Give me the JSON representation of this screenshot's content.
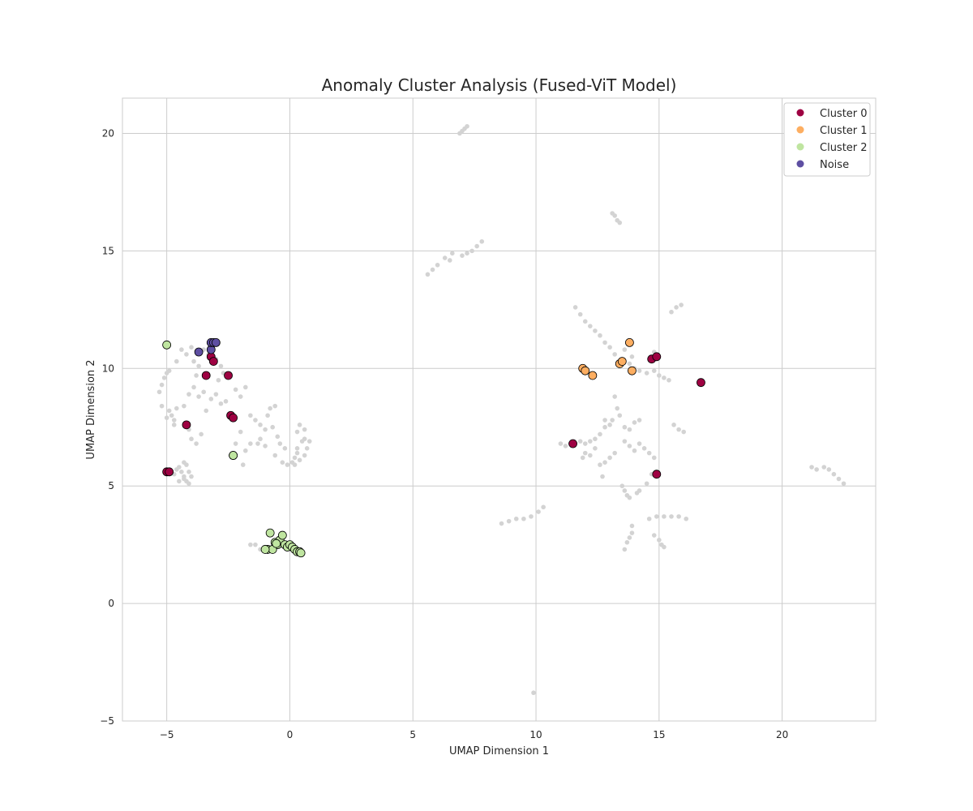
{
  "chart_data": {
    "type": "scatter",
    "title": "Anomaly Cluster Analysis (Fused-ViT Model)",
    "xlabel": "UMAP Dimension 1",
    "ylabel": "UMAP Dimension 2",
    "xlim": [
      -6.8,
      23.8
    ],
    "ylim": [
      -5.0,
      21.5
    ],
    "xticks": [
      -5,
      0,
      5,
      10,
      15,
      20
    ],
    "yticks": [
      -5,
      0,
      5,
      10,
      15,
      20
    ],
    "xtick_labels": [
      "−5",
      "0",
      "5",
      "10",
      "15",
      "20"
    ],
    "ytick_labels": [
      "−5",
      "0",
      "5",
      "10",
      "15",
      "20"
    ],
    "grid": true,
    "legend_position": "top-right",
    "background_color": "#d3d3d3",
    "background": [
      [
        -5.3,
        9.0
      ],
      [
        -5.2,
        9.3
      ],
      [
        -5.1,
        9.6
      ],
      [
        -5.0,
        9.8
      ],
      [
        -4.9,
        8.2
      ],
      [
        -4.8,
        8.0
      ],
      [
        -4.7,
        7.8
      ],
      [
        -4.6,
        8.3
      ],
      [
        -5.2,
        8.4
      ],
      [
        -5.0,
        7.9
      ],
      [
        -4.7,
        7.6
      ],
      [
        -4.9,
        9.9
      ],
      [
        -4.6,
        10.3
      ],
      [
        -4.4,
        10.8
      ],
      [
        -4.2,
        10.6
      ],
      [
        -4.0,
        10.9
      ],
      [
        -3.9,
        10.3
      ],
      [
        -3.7,
        10.1
      ],
      [
        -3.5,
        10.8
      ],
      [
        -3.3,
        10.6
      ],
      [
        -3.0,
        10.4
      ],
      [
        -2.8,
        10.1
      ],
      [
        -2.7,
        9.8
      ],
      [
        -2.9,
        9.5
      ],
      [
        -3.8,
        9.7
      ],
      [
        -3.9,
        9.2
      ],
      [
        -4.1,
        8.9
      ],
      [
        -4.3,
        8.4
      ],
      [
        -4.0,
        7.0
      ],
      [
        -3.8,
        6.8
      ],
      [
        -3.6,
        7.2
      ],
      [
        -4.1,
        7.4
      ],
      [
        -3.7,
        8.8
      ],
      [
        -3.5,
        9.0
      ],
      [
        -3.2,
        8.7
      ],
      [
        -3.0,
        8.9
      ],
      [
        -2.8,
        8.5
      ],
      [
        -2.6,
        8.6
      ],
      [
        -3.4,
        8.2
      ],
      [
        -2.2,
        9.1
      ],
      [
        -2.0,
        8.8
      ],
      [
        -1.8,
        9.2
      ],
      [
        -4.9,
        5.6
      ],
      [
        -4.7,
        5.5
      ],
      [
        -4.5,
        5.8
      ],
      [
        -4.3,
        5.4
      ],
      [
        -4.2,
        5.2
      ],
      [
        -4.1,
        5.1
      ],
      [
        -4.3,
        6.0
      ],
      [
        -4.5,
        5.2
      ],
      [
        -4.0,
        5.4
      ],
      [
        -4.4,
        5.6
      ],
      [
        -4.2,
        5.9
      ],
      [
        -4.6,
        5.7
      ],
      [
        -4.3,
        5.3
      ],
      [
        -4.1,
        5.6
      ],
      [
        -1.6,
        8.0
      ],
      [
        -1.4,
        7.8
      ],
      [
        -1.2,
        7.6
      ],
      [
        -1.0,
        7.4
      ],
      [
        -0.9,
        8.0
      ],
      [
        -0.8,
        8.3
      ],
      [
        -0.6,
        8.4
      ],
      [
        -0.7,
        7.5
      ],
      [
        -0.5,
        7.1
      ],
      [
        -1.2,
        7.0
      ],
      [
        -1.0,
        6.7
      ],
      [
        -1.3,
        6.8
      ],
      [
        -0.6,
        6.3
      ],
      [
        -0.3,
        6.0
      ],
      [
        -0.1,
        5.9
      ],
      [
        0.1,
        6.0
      ],
      [
        0.2,
        6.2
      ],
      [
        0.3,
        6.4
      ],
      [
        0.3,
        6.6
      ],
      [
        0.5,
        6.9
      ],
      [
        0.6,
        7.0
      ],
      [
        0.8,
        6.9
      ],
      [
        0.7,
        6.6
      ],
      [
        0.6,
        6.3
      ],
      [
        0.4,
        6.1
      ],
      [
        0.2,
        5.9
      ],
      [
        0.3,
        7.3
      ],
      [
        0.4,
        7.6
      ],
      [
        0.6,
        7.4
      ],
      [
        -0.2,
        6.6
      ],
      [
        -0.4,
        6.8
      ],
      [
        -2.0,
        7.3
      ],
      [
        -2.2,
        6.8
      ],
      [
        -1.8,
        6.5
      ],
      [
        -1.6,
        6.8
      ],
      [
        -1.9,
        5.9
      ],
      [
        -1.0,
        2.4
      ],
      [
        -1.2,
        2.3
      ],
      [
        -1.4,
        2.5
      ],
      [
        -1.6,
        2.5
      ],
      [
        6.9,
        20.0
      ],
      [
        7.0,
        20.1
      ],
      [
        7.1,
        20.2
      ],
      [
        7.2,
        20.3
      ],
      [
        5.6,
        14.0
      ],
      [
        5.8,
        14.2
      ],
      [
        6.0,
        14.4
      ],
      [
        6.3,
        14.7
      ],
      [
        6.6,
        14.9
      ],
      [
        7.0,
        14.8
      ],
      [
        7.2,
        14.9
      ],
      [
        7.4,
        15.0
      ],
      [
        7.6,
        15.2
      ],
      [
        7.8,
        15.4
      ],
      [
        6.5,
        14.6
      ],
      [
        13.1,
        16.6
      ],
      [
        13.2,
        16.5
      ],
      [
        13.3,
        16.3
      ],
      [
        13.4,
        16.2
      ],
      [
        11.6,
        12.6
      ],
      [
        11.8,
        12.3
      ],
      [
        12.0,
        12.0
      ],
      [
        12.2,
        11.8
      ],
      [
        12.4,
        11.6
      ],
      [
        12.6,
        11.4
      ],
      [
        12.8,
        11.1
      ],
      [
        13.0,
        10.9
      ],
      [
        13.2,
        10.6
      ],
      [
        13.5,
        10.4
      ],
      [
        13.8,
        10.2
      ],
      [
        14.0,
        10.0
      ],
      [
        14.2,
        9.9
      ],
      [
        14.5,
        9.8
      ],
      [
        14.8,
        9.9
      ],
      [
        15.0,
        9.7
      ],
      [
        15.2,
        9.6
      ],
      [
        15.4,
        9.5
      ],
      [
        15.5,
        12.4
      ],
      [
        15.7,
        12.6
      ],
      [
        15.9,
        12.7
      ],
      [
        14.8,
        10.7
      ],
      [
        13.6,
        10.8
      ],
      [
        13.9,
        10.5
      ],
      [
        13.2,
        8.8
      ],
      [
        13.3,
        8.3
      ],
      [
        13.4,
        8.0
      ],
      [
        13.1,
        7.8
      ],
      [
        12.8,
        7.5
      ],
      [
        12.6,
        7.2
      ],
      [
        12.4,
        7.0
      ],
      [
        12.2,
        6.9
      ],
      [
        12.0,
        6.8
      ],
      [
        11.8,
        6.9
      ],
      [
        11.4,
        6.8
      ],
      [
        11.2,
        6.7
      ],
      [
        11.0,
        6.8
      ],
      [
        12.8,
        7.8
      ],
      [
        13.0,
        7.6
      ],
      [
        13.6,
        7.5
      ],
      [
        13.8,
        7.4
      ],
      [
        14.0,
        7.7
      ],
      [
        14.2,
        7.8
      ],
      [
        13.6,
        6.9
      ],
      [
        13.8,
        6.7
      ],
      [
        14.0,
        6.5
      ],
      [
        14.2,
        6.8
      ],
      [
        14.4,
        6.6
      ],
      [
        14.6,
        6.4
      ],
      [
        14.8,
        6.2
      ],
      [
        13.2,
        6.4
      ],
      [
        13.0,
        6.2
      ],
      [
        12.8,
        6.0
      ],
      [
        12.6,
        5.9
      ],
      [
        12.4,
        6.6
      ],
      [
        12.2,
        6.3
      ],
      [
        12.0,
        6.4
      ],
      [
        11.9,
        6.2
      ],
      [
        12.7,
        5.4
      ],
      [
        13.5,
        5.0
      ],
      [
        13.6,
        4.8
      ],
      [
        13.7,
        4.6
      ],
      [
        13.8,
        4.5
      ],
      [
        14.1,
        4.7
      ],
      [
        14.2,
        4.8
      ],
      [
        14.5,
        5.1
      ],
      [
        14.7,
        5.5
      ],
      [
        13.9,
        3.0
      ],
      [
        13.8,
        2.8
      ],
      [
        13.7,
        2.6
      ],
      [
        13.6,
        2.3
      ],
      [
        13.9,
        3.3
      ],
      [
        14.6,
        3.6
      ],
      [
        14.9,
        3.7
      ],
      [
        15.2,
        3.7
      ],
      [
        15.5,
        3.7
      ],
      [
        15.8,
        3.7
      ],
      [
        16.1,
        3.6
      ],
      [
        14.8,
        2.9
      ],
      [
        15.0,
        2.7
      ],
      [
        15.1,
        2.5
      ],
      [
        15.2,
        2.4
      ],
      [
        15.8,
        7.4
      ],
      [
        16.0,
        7.3
      ],
      [
        15.6,
        7.6
      ],
      [
        8.6,
        3.4
      ],
      [
        8.9,
        3.5
      ],
      [
        9.2,
        3.6
      ],
      [
        9.5,
        3.6
      ],
      [
        9.8,
        3.7
      ],
      [
        10.1,
        3.9
      ],
      [
        10.3,
        4.1
      ],
      [
        9.9,
        -3.8
      ],
      [
        21.2,
        5.8
      ],
      [
        21.4,
        5.7
      ],
      [
        21.7,
        5.8
      ],
      [
        21.9,
        5.7
      ],
      [
        22.1,
        5.5
      ],
      [
        22.3,
        5.3
      ],
      [
        22.5,
        5.1
      ]
    ],
    "series": [
      {
        "name": "Cluster 0",
        "color": "#9e0142",
        "points": [
          [
            -3.4,
            9.7
          ],
          [
            -3.2,
            10.5
          ],
          [
            -3.1,
            10.3
          ],
          [
            -2.5,
            9.7
          ],
          [
            -2.4,
            8.0
          ],
          [
            -2.3,
            7.9
          ],
          [
            -4.2,
            7.6
          ],
          [
            -2.3,
            6.3
          ],
          [
            -5.0,
            5.6
          ],
          [
            -4.9,
            5.6
          ],
          [
            11.5,
            6.8
          ],
          [
            14.7,
            10.4
          ],
          [
            14.9,
            10.5
          ],
          [
            16.7,
            9.4
          ],
          [
            14.9,
            5.5
          ]
        ]
      },
      {
        "name": "Cluster 1",
        "color": "#fdae61",
        "points": [
          [
            11.9,
            10.0
          ],
          [
            12.0,
            9.9
          ],
          [
            12.3,
            9.7
          ],
          [
            13.4,
            10.2
          ],
          [
            13.5,
            10.3
          ],
          [
            13.8,
            11.1
          ],
          [
            13.9,
            9.9
          ]
        ]
      },
      {
        "name": "Cluster 2",
        "color": "#bfe5a0",
        "points": [
          [
            -5.0,
            11.0
          ],
          [
            -2.3,
            6.3
          ],
          [
            -0.8,
            3.0
          ],
          [
            -0.6,
            2.6
          ],
          [
            -0.5,
            2.5
          ],
          [
            -0.4,
            2.7
          ],
          [
            -0.3,
            2.9
          ],
          [
            -0.2,
            2.5
          ],
          [
            -0.1,
            2.4
          ],
          [
            0.0,
            2.5
          ],
          [
            0.1,
            2.4
          ],
          [
            0.2,
            2.3
          ],
          [
            0.3,
            2.2
          ],
          [
            0.4,
            2.2
          ],
          [
            -0.9,
            2.3
          ],
          [
            -0.7,
            2.3
          ],
          [
            -1.0,
            2.3
          ],
          [
            0.45,
            2.15
          ],
          [
            -0.55,
            2.55
          ]
        ]
      },
      {
        "name": "Noise",
        "color": "#5e4fa2",
        "points": [
          [
            -3.7,
            10.7
          ],
          [
            -3.2,
            10.8
          ],
          [
            -3.2,
            11.1
          ],
          [
            -3.1,
            11.1
          ],
          [
            -3.0,
            11.1
          ]
        ]
      }
    ]
  }
}
